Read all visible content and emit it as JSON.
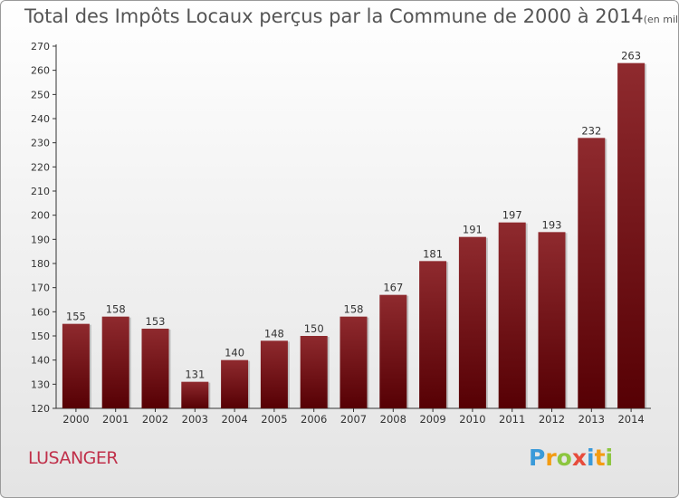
{
  "chart_data": {
    "type": "bar",
    "title": "Total des Impôts Locaux perçus par la Commune de 2000 à 2014",
    "unit_note": "(en milliers d'€)",
    "categories": [
      "2000",
      "2001",
      "2002",
      "2003",
      "2004",
      "2005",
      "2006",
      "2007",
      "2008",
      "2009",
      "2010",
      "2011",
      "2012",
      "2013",
      "2014"
    ],
    "values": [
      155,
      158,
      153,
      131,
      140,
      148,
      150,
      158,
      167,
      181,
      191,
      197,
      193,
      232,
      263
    ],
    "ylim": [
      120,
      270
    ],
    "yticks": [
      120,
      130,
      140,
      150,
      160,
      170,
      180,
      190,
      200,
      210,
      220,
      230,
      240,
      250,
      260,
      270
    ],
    "xlabel": "",
    "ylabel": "",
    "grid": false,
    "bar_color": "#6e0f13"
  },
  "commune_name": "LUSANGER",
  "logo": {
    "letters": [
      "P",
      "r",
      "o",
      "x",
      "i",
      "t",
      "i"
    ],
    "colors": [
      "#3a9ad9",
      "#f39c12",
      "#8cc63f",
      "#e74c3c",
      "#3a9ad9",
      "#f39c12",
      "#8cc63f"
    ]
  }
}
